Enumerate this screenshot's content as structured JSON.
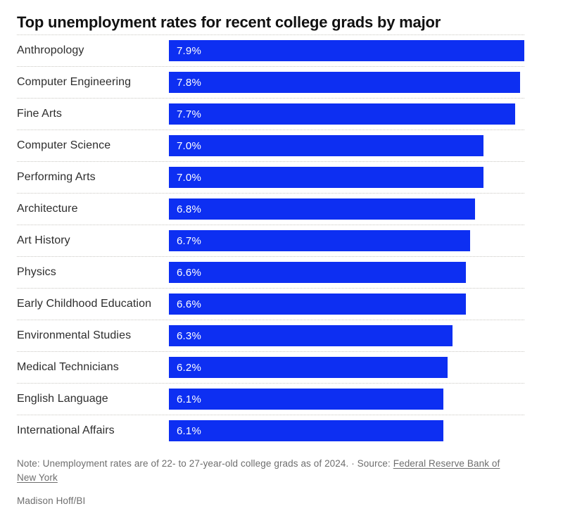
{
  "title": "Top unemployment rates for recent college grads by major",
  "chart_data": {
    "type": "bar",
    "orientation": "horizontal",
    "title": "Top unemployment rates for recent college grads by major",
    "value_suffix": "%",
    "axis_max": 7.9,
    "bar_color": "#0d2ff2",
    "grid": "dotted-row-separators",
    "legend": "none",
    "categories": [
      "Anthropology",
      "Computer Engineering",
      "Fine Arts",
      "Computer Science",
      "Performing Arts",
      "Architecture",
      "Art History",
      "Physics",
      "Early Childhood Education",
      "Environmental Studies",
      "Medical Technicians",
      "English Language",
      "International Affairs"
    ],
    "values": [
      7.9,
      7.8,
      7.7,
      7.0,
      7.0,
      6.8,
      6.7,
      6.6,
      6.6,
      6.3,
      6.2,
      6.1,
      6.1
    ]
  },
  "footer": {
    "note_prefix": "Note: Unemployment rates are of 22- to 27-year-old college grads as of 2024. · Source: ",
    "source_link": "Federal Reserve Bank of New York",
    "byline": "Madison Hoff/BI"
  }
}
